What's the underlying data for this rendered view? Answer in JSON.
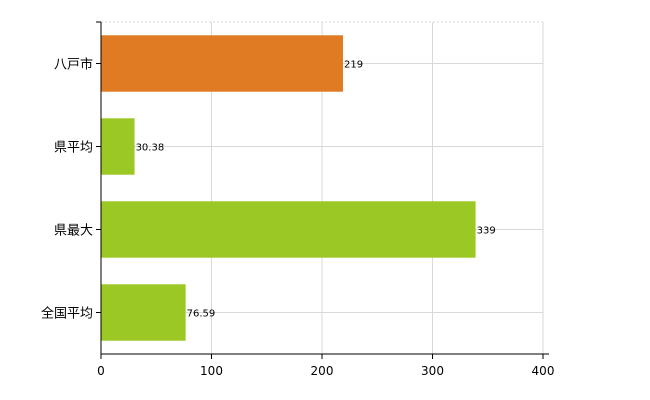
{
  "chart_data": {
    "type": "bar",
    "orientation": "horizontal",
    "categories": [
      "八戸市",
      "県平均",
      "県最大",
      "全国平均"
    ],
    "values": [
      219,
      30.38,
      339,
      76.59
    ],
    "value_labels": [
      "219",
      "30.38",
      "339",
      "76.59"
    ],
    "bar_colors": [
      "#e07b24",
      "#9bc824",
      "#9bc824",
      "#9bc824"
    ],
    "xlim": [
      0,
      400
    ],
    "xticks": [
      0,
      100,
      200,
      300,
      400
    ],
    "xtick_labels": [
      "0",
      "100",
      "200",
      "300",
      "400"
    ],
    "grid": true,
    "title": "",
    "xlabel": "",
    "ylabel": ""
  }
}
